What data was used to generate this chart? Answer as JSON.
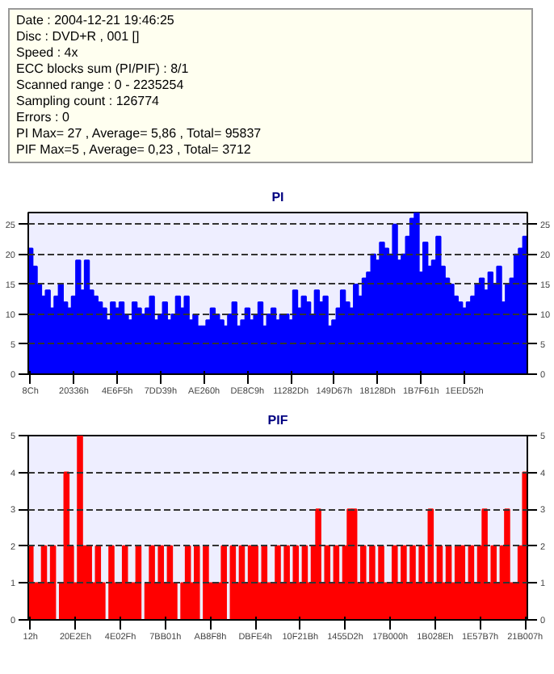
{
  "chart_data": [
    {
      "type": "other",
      "annotations": [
        "Date : 2004-12-21 19:46:25",
        "Disc : DVD+R , 001 []",
        "Speed : 4x",
        "ECC blocks sum (PI/PIF) : 8/1",
        "Scanned range : 0 - 2235254",
        "Sampling count : 126774",
        "Errors : 0",
        "PI Max= 27 , Average= 5,86 , Total= 95837",
        "PIF Max=5 , Average= 0,23 , Total= 3712"
      ]
    },
    {
      "type": "bar",
      "title": "PI",
      "color": "#0000ff",
      "grid": "y",
      "ylim": [
        0,
        27
      ],
      "yticks": [
        0,
        5,
        10,
        15,
        20,
        25
      ],
      "y2lim": [
        0,
        27
      ],
      "y2ticks": [
        0,
        5,
        10,
        15,
        20,
        25
      ],
      "categories": [
        "8Ch",
        null,
        null,
        null,
        null,
        null,
        null,
        null,
        null,
        null,
        "20336h",
        null,
        null,
        null,
        null,
        null,
        null,
        null,
        null,
        null,
        "4E6F5h",
        null,
        null,
        null,
        null,
        null,
        null,
        null,
        null,
        null,
        "7DD39h",
        null,
        null,
        null,
        null,
        null,
        null,
        null,
        null,
        null,
        "AE260h",
        null,
        null,
        null,
        null,
        null,
        null,
        null,
        null,
        null,
        "DE8C9h",
        null,
        null,
        null,
        null,
        null,
        null,
        null,
        null,
        null,
        "11282Dh",
        null,
        null,
        null,
        null,
        null,
        null,
        null,
        null,
        null,
        "149D67h",
        null,
        null,
        null,
        null,
        null,
        null,
        null,
        null,
        null,
        "18128Dh",
        null,
        null,
        null,
        null,
        null,
        null,
        null,
        null,
        null,
        "1B7F61h",
        null,
        null,
        null,
        null,
        null,
        null,
        null,
        null,
        null,
        "1EED52h",
        null,
        null,
        null,
        null,
        null,
        null,
        null,
        null,
        null,
        null,
        null,
        null,
        null,
        null
      ],
      "values": [
        21,
        18,
        15,
        13,
        14,
        11,
        13,
        15,
        12,
        11,
        13,
        19,
        14,
        19,
        14,
        13,
        12,
        11,
        9,
        12,
        11,
        12,
        10,
        9,
        12,
        11,
        10,
        11,
        13,
        9,
        10,
        12,
        9,
        10,
        13,
        11,
        13,
        9,
        10,
        8,
        8,
        9,
        11,
        10,
        9,
        8,
        10,
        12,
        8,
        9,
        11,
        9,
        10,
        12,
        8,
        10,
        11,
        9,
        10,
        10,
        9,
        14,
        11,
        13,
        12,
        10,
        14,
        12,
        13,
        8,
        9,
        11,
        14,
        12,
        11,
        15,
        13,
        16,
        17,
        20,
        19,
        22,
        21,
        20,
        25,
        19,
        20,
        23,
        26,
        27,
        17,
        22,
        18,
        19,
        23,
        18,
        16,
        15,
        13,
        12,
        11,
        12,
        13,
        15,
        16,
        14,
        17,
        15,
        18,
        12,
        15,
        16,
        20,
        21,
        23
      ]
    },
    {
      "type": "bar",
      "title": "PIF",
      "color": "#ff0000",
      "grid": "y",
      "ylim": [
        0,
        5
      ],
      "yticks": [
        0,
        1,
        2,
        3,
        4,
        5
      ],
      "y2lim": [
        0,
        5
      ],
      "y2ticks": [
        0,
        1,
        2,
        3,
        4,
        5
      ],
      "categories": [
        "12h",
        null,
        null,
        null,
        null,
        null,
        null,
        null,
        null,
        null,
        "20E2Eh",
        null,
        null,
        null,
        null,
        null,
        null,
        null,
        null,
        null,
        "4E02Fh",
        null,
        null,
        null,
        null,
        null,
        null,
        null,
        null,
        null,
        "7BB01h",
        null,
        null,
        null,
        null,
        null,
        null,
        null,
        null,
        null,
        "AB8F8h",
        null,
        null,
        null,
        null,
        null,
        null,
        null,
        null,
        null,
        "DBFE4h",
        null,
        null,
        null,
        null,
        null,
        null,
        null,
        null,
        null,
        "10F21Bh",
        null,
        null,
        null,
        null,
        null,
        null,
        null,
        null,
        null,
        "1455D2h",
        null,
        null,
        null,
        null,
        null,
        null,
        null,
        null,
        null,
        "17B000h",
        null,
        null,
        null,
        null,
        null,
        null,
        null,
        null,
        null,
        "1B028Eh",
        null,
        null,
        null,
        null,
        null,
        null,
        null,
        null,
        null,
        "1E57B7h",
        null,
        null,
        null,
        null,
        null,
        null,
        null,
        null,
        null,
        "21B007h"
      ],
      "values": [
        2,
        1,
        1,
        2,
        1,
        2,
        0,
        1,
        4,
        2,
        1,
        5,
        2,
        2,
        1,
        2,
        1,
        0,
        2,
        1,
        1,
        2,
        1,
        1,
        2,
        0,
        1,
        2,
        1,
        2,
        1,
        2,
        1,
        0,
        1,
        2,
        1,
        2,
        0,
        2,
        1,
        1,
        1,
        2,
        0,
        2,
        1,
        2,
        1,
        2,
        2,
        1,
        2,
        1,
        1,
        2,
        1,
        2,
        1,
        2,
        1,
        2,
        1,
        2,
        3,
        1,
        2,
        1,
        2,
        1,
        2,
        3,
        3,
        1,
        2,
        1,
        2,
        1,
        2,
        1,
        1,
        2,
        1,
        2,
        1,
        2,
        1,
        2,
        1,
        3,
        1,
        2,
        1,
        2,
        1,
        2,
        2,
        1,
        2,
        1,
        2,
        3,
        1,
        2,
        1,
        2,
        3,
        1,
        1,
        2,
        4
      ]
    }
  ]
}
